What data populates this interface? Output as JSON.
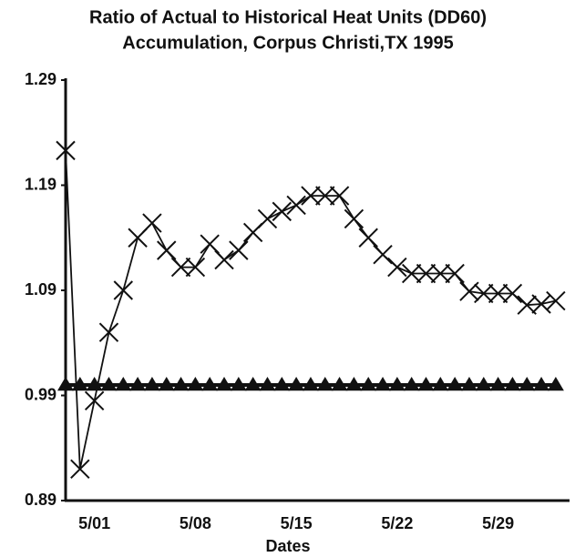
{
  "chart_data": {
    "type": "line",
    "title": [
      "Ratio of Actual to Historical Heat Units (DD60)",
      "Accumulation, Corpus Christi,TX 1995"
    ],
    "x_label": "Dates",
    "categories": [
      null,
      null,
      "5/01",
      null,
      null,
      null,
      null,
      null,
      null,
      "5/08",
      null,
      null,
      null,
      null,
      null,
      null,
      "5/15",
      null,
      null,
      null,
      null,
      null,
      null,
      "5/22",
      null,
      null,
      null,
      null,
      null,
      null,
      "5/29",
      null,
      null,
      null,
      null
    ],
    "series": [
      {
        "color": "#111111",
        "marker": "x",
        "values": [
          1.223,
          0.92,
          0.985,
          1.05,
          1.09,
          1.14,
          1.154,
          1.128,
          1.112,
          1.112,
          1.134,
          1.119,
          1.128,
          1.145,
          1.158,
          1.165,
          1.171,
          1.18,
          1.18,
          1.18,
          1.158,
          1.14,
          1.124,
          1.112,
          1.106,
          1.106,
          1.106,
          1.106,
          1.089,
          1.087,
          1.087,
          1.087,
          1.076,
          1.077,
          1.08
        ]
      },
      {
        "color": "#111111",
        "marker": "triangle",
        "values": [
          1.0,
          1.0,
          1.0,
          1.0,
          1.0,
          1.0,
          1.0,
          1.0,
          1.0,
          1.0,
          1.0,
          1.0,
          1.0,
          1.0,
          1.0,
          1.0,
          1.0,
          1.0,
          1.0,
          1.0,
          1.0,
          1.0,
          1.0,
          1.0,
          1.0,
          1.0,
          1.0,
          1.0,
          1.0,
          1.0,
          1.0,
          1.0,
          1.0,
          1.0,
          1.0
        ]
      }
    ],
    "ylim": [
      0.89,
      1.29
    ],
    "yticks": [
      0.89,
      0.99,
      1.09,
      1.19,
      1.29
    ],
    "grid": false
  }
}
